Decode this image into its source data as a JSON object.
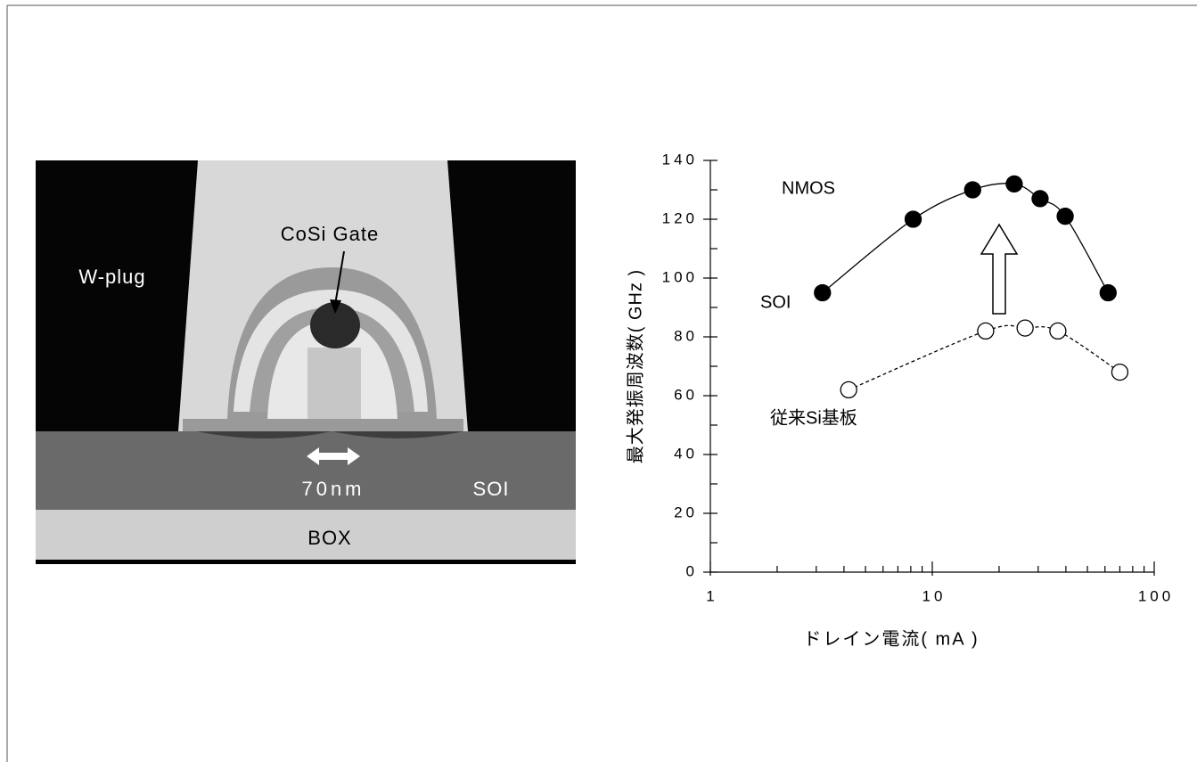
{
  "image": {
    "labels": {
      "plug": "W-plug",
      "gate": "CoSi Gate",
      "length": "70nm",
      "soi": "SOI",
      "box": "BOX"
    }
  },
  "chart_data": {
    "type": "line",
    "y_label": "最大発振周波数( GHz )",
    "x_label": "ドレイン電流( mA )",
    "annotation": "NMOS",
    "log_x": true,
    "xlim": [
      1,
      100
    ],
    "xticks": [
      1,
      10,
      100
    ],
    "ylim": [
      0,
      140
    ],
    "yticks": [
      0,
      20,
      40,
      60,
      80,
      100,
      120,
      140
    ],
    "series": [
      {
        "name": "SOI",
        "color": "#000000",
        "marker": "filled",
        "dashed": false,
        "x": [
          3.2,
          8.2,
          15.2,
          23.4,
          30.6,
          39.7,
          62
        ],
        "values": [
          95,
          120,
          130,
          132,
          127,
          121,
          95
        ]
      },
      {
        "name": "従来Si基板",
        "color": "#000000",
        "marker": "open",
        "dashed": true,
        "x": [
          4.2,
          17.4,
          26.2,
          36.8,
          70
        ],
        "values": [
          62,
          82,
          83,
          82,
          68
        ]
      }
    ]
  }
}
